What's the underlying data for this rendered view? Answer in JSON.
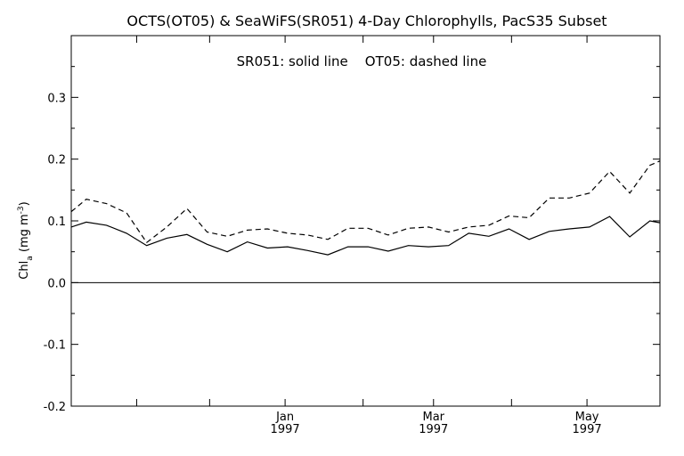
{
  "chart_data": {
    "type": "line",
    "title": "OCTS(OT05) & SeaWiFS(SR051) 4-Day Chlorophylls, PacS35 Subset",
    "annotation": "SR051: solid line    OT05: dashed line",
    "ylabel": {
      "prefix": "Chl",
      "subscript": "a",
      "units": " (mg m",
      "superscript": "-3",
      "close": ")"
    },
    "ylim": [
      -0.2,
      0.4
    ],
    "yticks": [
      {
        "value": -0.2,
        "label": "-0.2"
      },
      {
        "value": -0.1,
        "label": "-0.1"
      },
      {
        "value": 0.0,
        "label": "0.0"
      },
      {
        "value": 0.1,
        "label": "0.1"
      },
      {
        "value": 0.2,
        "label": "0.2"
      },
      {
        "value": 0.3,
        "label": "0.3"
      }
    ],
    "x_unit": "day",
    "xlim": [
      0,
      234
    ],
    "xticks": [
      {
        "value": 0
      },
      {
        "value": 26
      },
      {
        "value": 55
      },
      {
        "value": 85,
        "label": "Jan",
        "label2": "1997"
      },
      {
        "value": 116
      },
      {
        "value": 144,
        "label": "Mar",
        "label2": "1997"
      },
      {
        "value": 175
      },
      {
        "value": 205,
        "label": "May",
        "label2": "1997"
      },
      {
        "value": 234
      }
    ],
    "zero_line": true,
    "series": [
      {
        "name": "SR051",
        "style": "solid",
        "x": [
          0,
          6,
          14,
          22,
          30,
          38,
          46,
          54,
          62,
          70,
          78,
          86,
          94,
          102,
          110,
          118,
          126,
          134,
          142,
          150,
          158,
          166,
          174,
          182,
          190,
          198,
          206,
          214,
          222,
          230,
          234
        ],
        "values": [
          0.09,
          0.098,
          0.093,
          0.08,
          0.06,
          0.072,
          0.078,
          0.062,
          0.05,
          0.066,
          0.056,
          0.058,
          0.052,
          0.045,
          0.058,
          0.058,
          0.051,
          0.06,
          0.058,
          0.06,
          0.08,
          0.075,
          0.087,
          0.07,
          0.083,
          0.087,
          0.09,
          0.107,
          0.074,
          0.1,
          0.097
        ]
      },
      {
        "name": "OT05",
        "style": "dashed",
        "x": [
          0,
          6,
          14,
          22,
          30,
          38,
          46,
          54,
          62,
          70,
          78,
          86,
          94,
          102,
          110,
          118,
          126,
          134,
          142,
          150,
          158,
          166,
          174,
          182,
          190,
          198,
          206,
          214,
          222,
          230,
          234
        ],
        "values": [
          0.115,
          0.135,
          0.128,
          0.113,
          0.065,
          0.09,
          0.12,
          0.082,
          0.075,
          0.085,
          0.087,
          0.08,
          0.077,
          0.07,
          0.088,
          0.088,
          0.077,
          0.088,
          0.09,
          0.082,
          0.09,
          0.093,
          0.108,
          0.105,
          0.137,
          0.137,
          0.145,
          0.18,
          0.145,
          0.19,
          0.197
        ]
      }
    ]
  }
}
